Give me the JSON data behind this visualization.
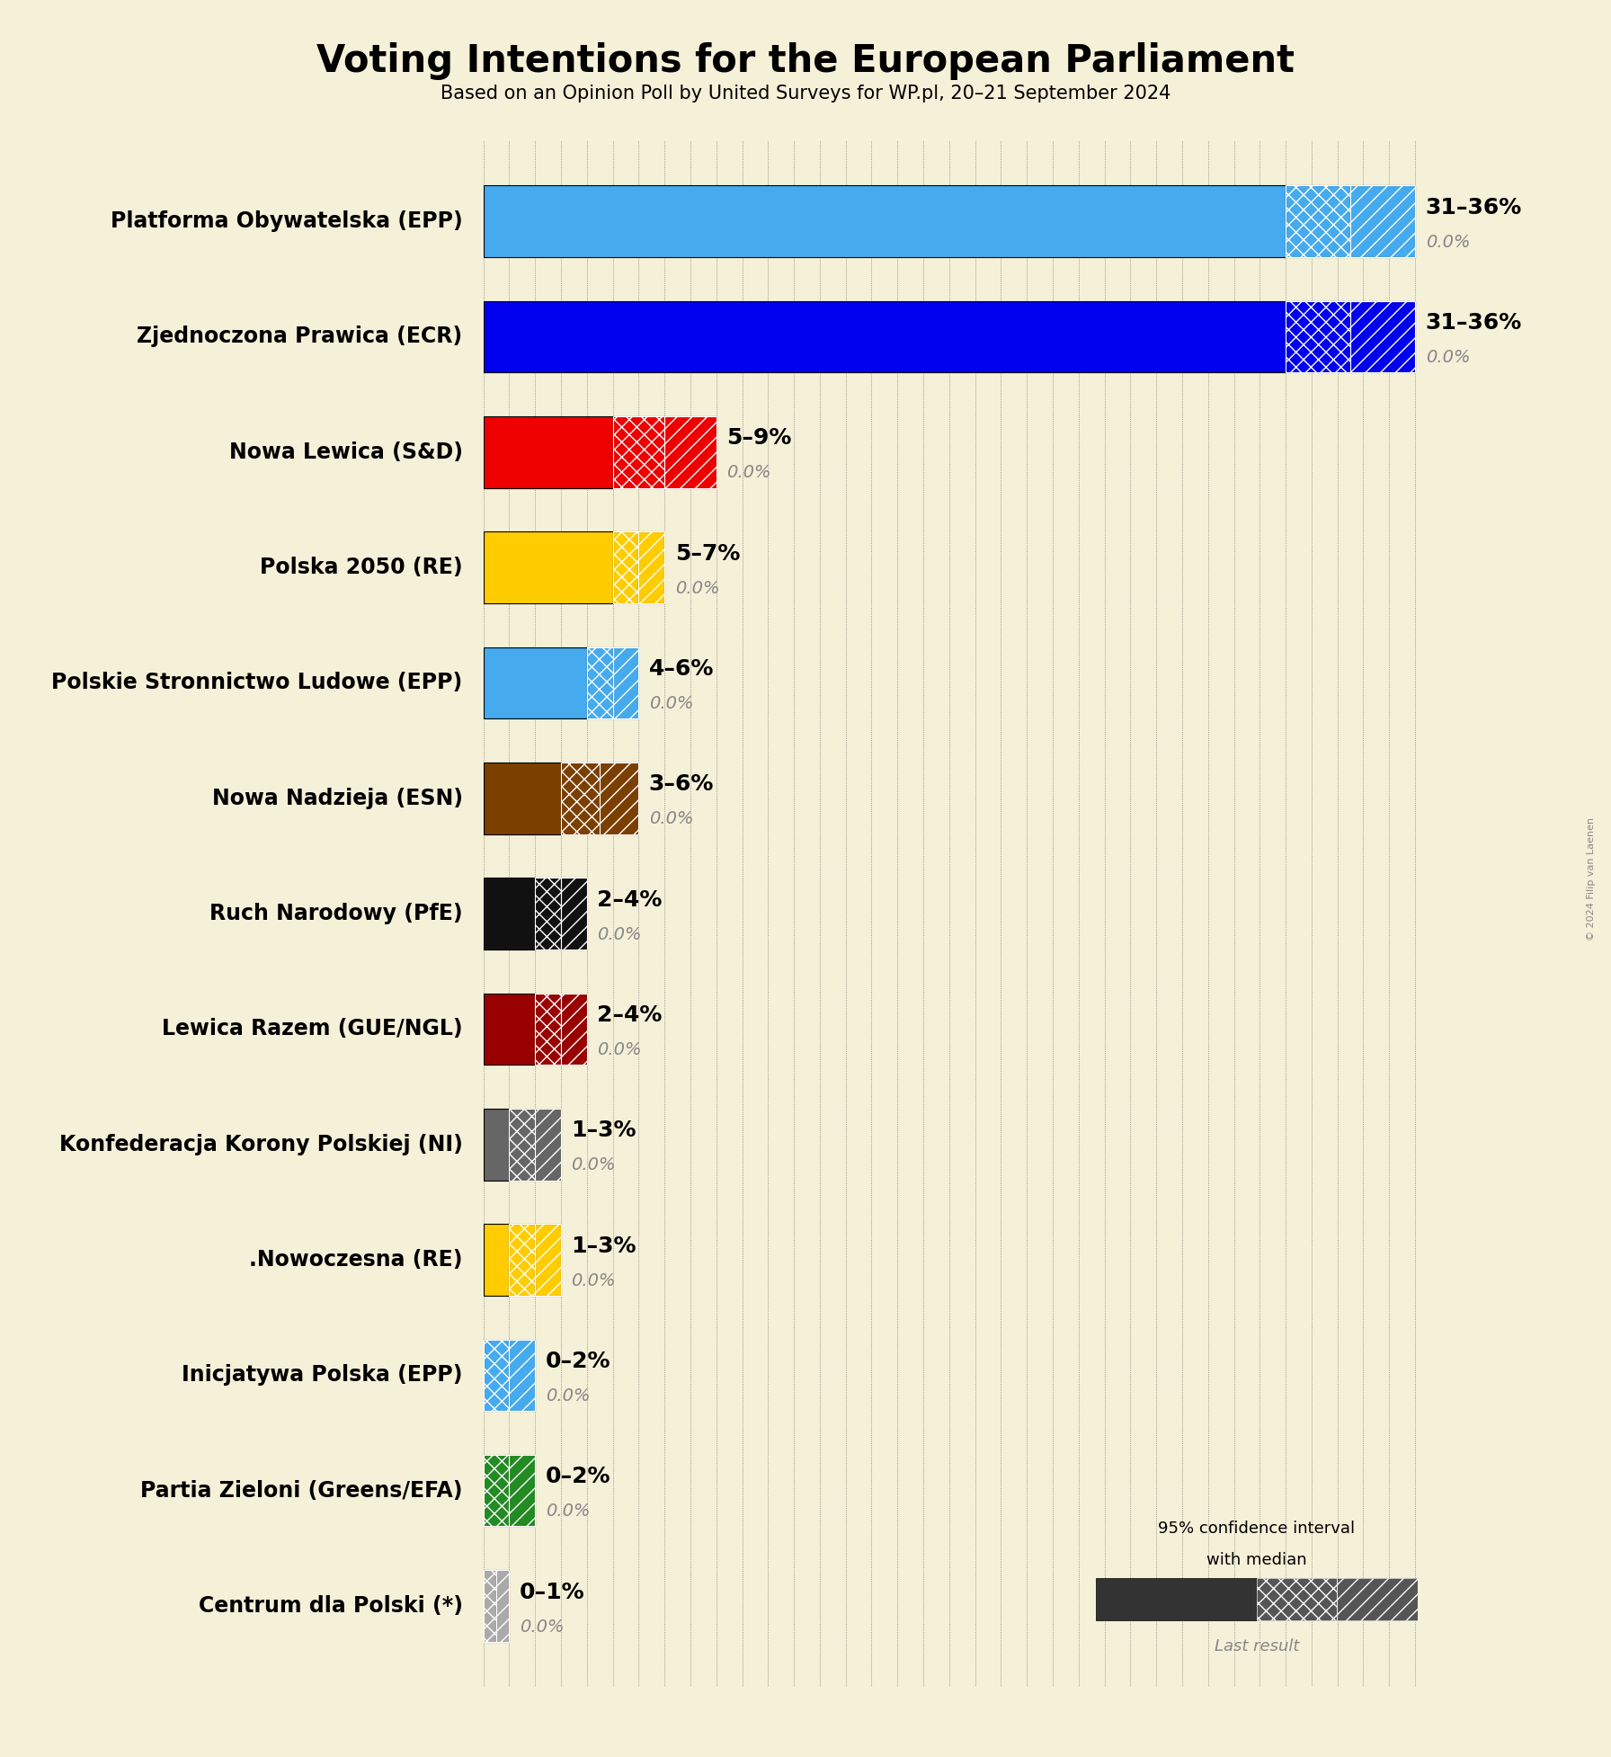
{
  "title": "Voting Intentions for the European Parliament",
  "subtitle": "Based on an Opinion Poll by United Surveys for WP.pl, 20–21 September 2024",
  "copyright": "© 2024 Filip van Laenen",
  "background_color": "#f5f0d8",
  "parties": [
    {
      "name": "Platforma Obywatelska (EPP)",
      "low": 31,
      "high": 36,
      "last": 0.0,
      "color": "#45aaee",
      "label": "31–36%"
    },
    {
      "name": "Zjednoczona Prawica (ECR)",
      "low": 31,
      "high": 36,
      "last": 0.0,
      "color": "#0000ee",
      "label": "31–36%"
    },
    {
      "name": "Nowa Lewica (S&D)",
      "low": 5,
      "high": 9,
      "last": 0.0,
      "color": "#ee0000",
      "label": "5–9%"
    },
    {
      "name": "Polska 2050 (RE)",
      "low": 5,
      "high": 7,
      "last": 0.0,
      "color": "#ffcc00",
      "label": "5–7%"
    },
    {
      "name": "Polskie Stronnictwo Ludowe (EPP)",
      "low": 4,
      "high": 6,
      "last": 0.0,
      "color": "#45aaee",
      "label": "4–6%"
    },
    {
      "name": "Nowa Nadzieja (ESN)",
      "low": 3,
      "high": 6,
      "last": 0.0,
      "color": "#7b3f00",
      "label": "3–6%"
    },
    {
      "name": "Ruch Narodowy (PfE)",
      "low": 2,
      "high": 4,
      "last": 0.0,
      "color": "#111111",
      "label": "2–4%"
    },
    {
      "name": "Lewica Razem (GUE/NGL)",
      "low": 2,
      "high": 4,
      "last": 0.0,
      "color": "#990000",
      "label": "2–4%"
    },
    {
      "name": "Konfederacja Korony Polskiej (NI)",
      "low": 1,
      "high": 3,
      "last": 0.0,
      "color": "#666666",
      "label": "1–3%"
    },
    {
      "name": ".Nowoczesna (RE)",
      "low": 1,
      "high": 3,
      "last": 0.0,
      "color": "#ffcc00",
      "label": "1–3%"
    },
    {
      "name": "Inicjatywa Polska (EPP)",
      "low": 0,
      "high": 2,
      "last": 0.0,
      "color": "#45aaee",
      "label": "0–2%"
    },
    {
      "name": "Partia Zieloni (Greens/EFA)",
      "low": 0,
      "high": 2,
      "last": 0.0,
      "color": "#228b22",
      "label": "0–2%"
    },
    {
      "name": "Centrum dla Polski (*)",
      "low": 0,
      "high": 1,
      "last": 0.0,
      "color": "#aaaaaa",
      "label": "0–1%"
    }
  ],
  "xmax": 36,
  "bar_height": 0.62,
  "label_fontsize": 17,
  "range_fontsize": 18,
  "last_fontsize": 14
}
